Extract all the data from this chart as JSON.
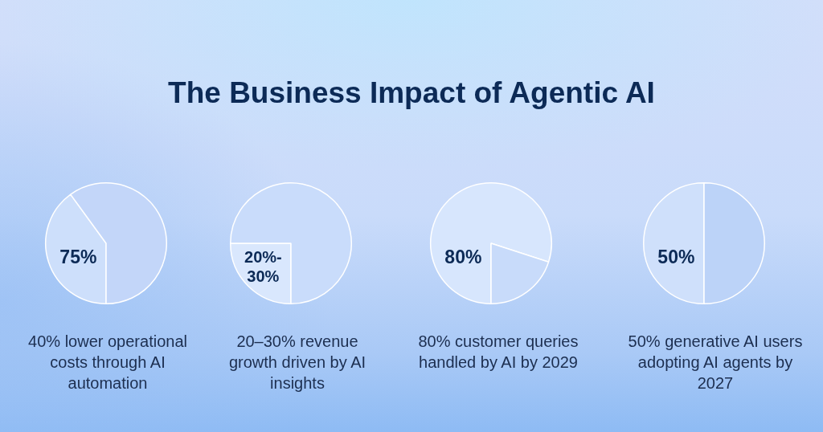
{
  "chart_data": [
    {
      "type": "other",
      "title": "The Business Impact of Agentic AI"
    },
    {
      "type": "pie",
      "values": [
        40,
        60
      ],
      "colors": [
        "#cddffb",
        "#c3d6f9"
      ],
      "annotations": [
        "75%"
      ],
      "xlabel": "40% lower operational costs through AI automation"
    },
    {
      "type": "pie",
      "values": [
        25,
        75
      ],
      "colors": [
        "#d9e7fd",
        "#c9dcfb"
      ],
      "annotations": [
        "20%-30%"
      ],
      "xlabel": "20–30% revenue growth driven by AI insights"
    },
    {
      "type": "pie",
      "values": [
        80,
        20
      ],
      "colors": [
        "#d7e6fd",
        "#c8dbfa"
      ],
      "value_labels": [
        "80%",
        null
      ],
      "xlabel": "80% customer queries handled by AI by 2029"
    },
    {
      "type": "pie",
      "values": [
        50,
        50
      ],
      "colors": [
        "#cfe0fb",
        "#bcd3f8"
      ],
      "value_labels": [
        "50%",
        null
      ],
      "xlabel": "50% generative AI users adopting AI agents by 2027"
    }
  ]
}
